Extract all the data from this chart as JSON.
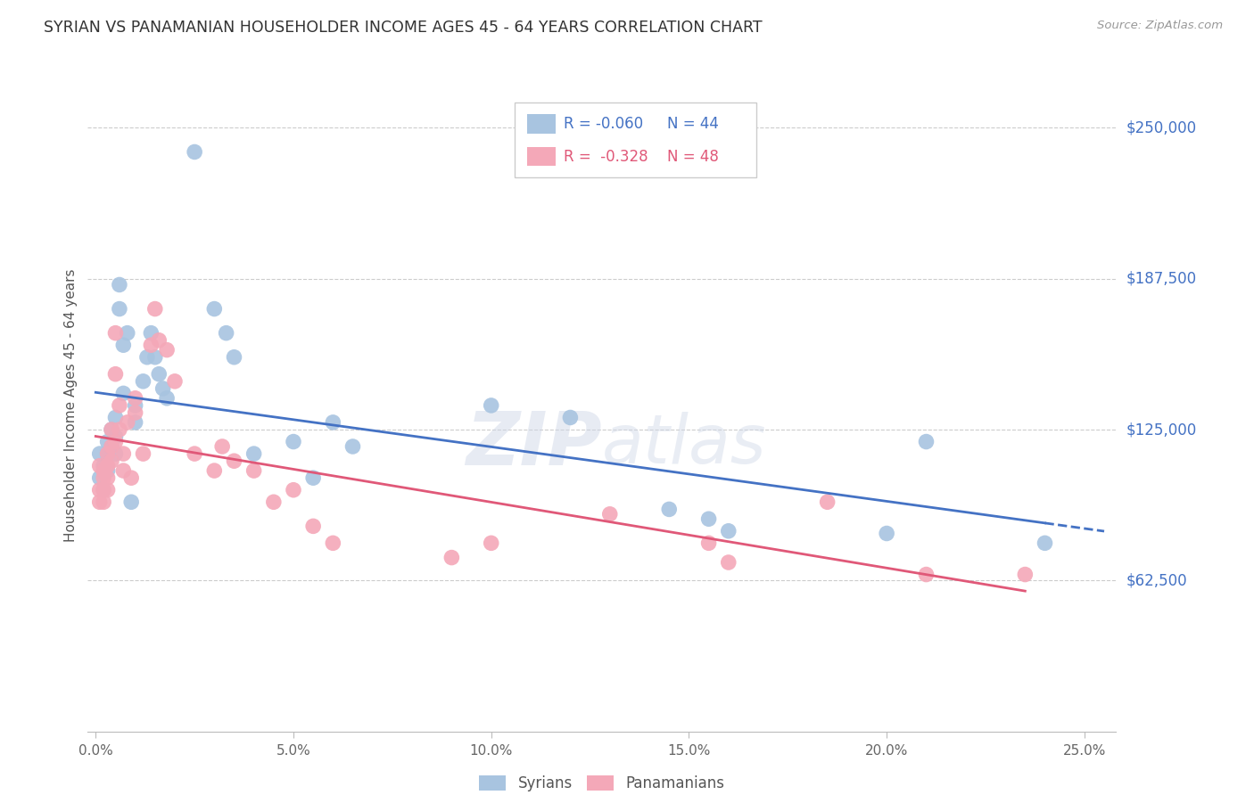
{
  "title": "SYRIAN VS PANAMANIAN HOUSEHOLDER INCOME AGES 45 - 64 YEARS CORRELATION CHART",
  "source": "Source: ZipAtlas.com",
  "ylabel": "Householder Income Ages 45 - 64 years",
  "ytick_labels": [
    "$62,500",
    "$125,000",
    "$187,500",
    "$250,000"
  ],
  "ytick_values": [
    62500,
    125000,
    187500,
    250000
  ],
  "ymin": 0,
  "ymax": 270000,
  "xmin": -0.002,
  "xmax": 0.258,
  "legend_blue_r": "R = -0.060",
  "legend_blue_n": "N = 44",
  "legend_pink_r": "R =  -0.328",
  "legend_pink_n": "N = 48",
  "blue_color": "#a8c4e0",
  "pink_color": "#f4a8b8",
  "line_blue": "#4472c4",
  "line_pink": "#e05878",
  "watermark_zip": "ZIP",
  "watermark_atlas": "atlas",
  "background": "#ffffff",
  "grid_color": "#cccccc",
  "syrians_x": [
    0.001,
    0.001,
    0.002,
    0.002,
    0.003,
    0.003,
    0.003,
    0.004,
    0.004,
    0.005,
    0.005,
    0.005,
    0.006,
    0.006,
    0.007,
    0.007,
    0.008,
    0.009,
    0.01,
    0.01,
    0.012,
    0.013,
    0.014,
    0.015,
    0.016,
    0.017,
    0.018,
    0.025,
    0.03,
    0.033,
    0.035,
    0.04,
    0.05,
    0.055,
    0.06,
    0.065,
    0.1,
    0.12,
    0.145,
    0.155,
    0.16,
    0.2,
    0.21,
    0.24
  ],
  "syrians_y": [
    115000,
    105000,
    110000,
    100000,
    120000,
    115000,
    108000,
    125000,
    118000,
    130000,
    122000,
    115000,
    185000,
    175000,
    160000,
    140000,
    165000,
    95000,
    135000,
    128000,
    145000,
    155000,
    165000,
    155000,
    148000,
    142000,
    138000,
    240000,
    175000,
    165000,
    155000,
    115000,
    120000,
    105000,
    128000,
    118000,
    135000,
    130000,
    92000,
    88000,
    83000,
    82000,
    120000,
    78000
  ],
  "panamanians_x": [
    0.001,
    0.001,
    0.001,
    0.002,
    0.002,
    0.002,
    0.002,
    0.003,
    0.003,
    0.003,
    0.003,
    0.004,
    0.004,
    0.004,
    0.005,
    0.005,
    0.005,
    0.006,
    0.006,
    0.007,
    0.007,
    0.008,
    0.009,
    0.01,
    0.01,
    0.012,
    0.014,
    0.015,
    0.016,
    0.018,
    0.02,
    0.025,
    0.03,
    0.032,
    0.035,
    0.04,
    0.045,
    0.05,
    0.055,
    0.06,
    0.09,
    0.1,
    0.13,
    0.155,
    0.16,
    0.185,
    0.21,
    0.235
  ],
  "panamanians_y": [
    110000,
    100000,
    95000,
    108000,
    105000,
    100000,
    95000,
    115000,
    110000,
    105000,
    100000,
    125000,
    118000,
    112000,
    165000,
    148000,
    120000,
    135000,
    125000,
    115000,
    108000,
    128000,
    105000,
    138000,
    132000,
    115000,
    160000,
    175000,
    162000,
    158000,
    145000,
    115000,
    108000,
    118000,
    112000,
    108000,
    95000,
    100000,
    85000,
    78000,
    72000,
    78000,
    90000,
    78000,
    70000,
    95000,
    65000,
    65000
  ]
}
